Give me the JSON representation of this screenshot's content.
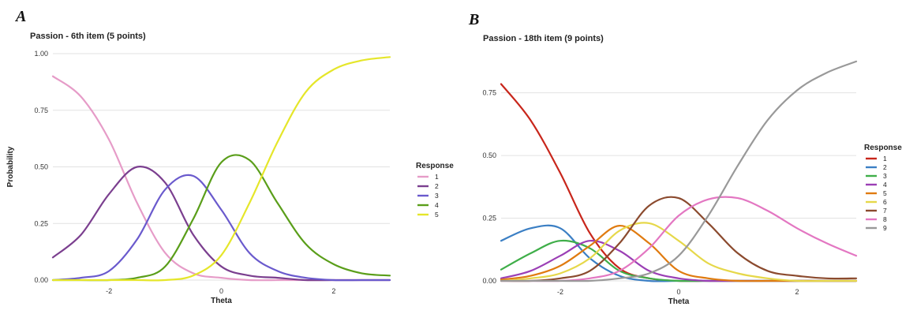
{
  "chart_data": [
    {
      "type": "line",
      "panel": "A",
      "title": "Passion - 6th item (5 points)",
      "xlabel": "Theta",
      "ylabel": "Probability",
      "xlim": [
        -3,
        3
      ],
      "ylim": [
        0,
        1.0
      ],
      "x_ticks": [
        -2,
        0,
        2
      ],
      "x_tick_labels": [
        "-2",
        "0",
        "2"
      ],
      "y_ticks": [
        0,
        0.25,
        0.5,
        0.75,
        1.0
      ],
      "y_tick_labels": [
        "0.00",
        "0.25",
        "0.50",
        "0.75",
        "1.00"
      ],
      "grid": true,
      "legend": {
        "title": "Response",
        "placement": "right"
      },
      "x": [
        -3.0,
        -2.5,
        -2.0,
        -1.5,
        -1.0,
        -0.5,
        0.0,
        0.5,
        1.0,
        1.5,
        2.0,
        2.5,
        3.0
      ],
      "series": [
        {
          "name": "1",
          "color": "#e69cc8",
          "values": [
            0.9,
            0.81,
            0.62,
            0.34,
            0.12,
            0.03,
            0.01,
            0.0,
            0.0,
            0.0,
            0.0,
            0.0,
            0.0
          ]
        },
        {
          "name": "2",
          "color": "#7b3f8f",
          "values": [
            0.1,
            0.2,
            0.38,
            0.5,
            0.43,
            0.2,
            0.06,
            0.02,
            0.01,
            0.0,
            0.0,
            0.0,
            0.0
          ]
        },
        {
          "name": "3",
          "color": "#6a5acd",
          "values": [
            0.0,
            0.01,
            0.04,
            0.18,
            0.4,
            0.46,
            0.31,
            0.12,
            0.04,
            0.01,
            0.0,
            0.0,
            0.0
          ]
        },
        {
          "name": "4",
          "color": "#5a9e1a",
          "values": [
            0.0,
            0.0,
            0.0,
            0.01,
            0.06,
            0.27,
            0.52,
            0.53,
            0.34,
            0.16,
            0.07,
            0.03,
            0.02
          ]
        },
        {
          "name": "5",
          "color": "#e5e62a",
          "values": [
            0.0,
            0.0,
            0.0,
            0.0,
            0.0,
            0.02,
            0.11,
            0.34,
            0.61,
            0.83,
            0.93,
            0.97,
            0.985
          ]
        }
      ]
    },
    {
      "type": "line",
      "panel": "B",
      "title": "Passion - 18th item (9 points)",
      "xlabel": "Theta",
      "ylabel": "",
      "xlim": [
        -3,
        3
      ],
      "ylim": [
        0,
        0.9
      ],
      "x_ticks": [
        -2,
        0,
        2
      ],
      "x_tick_labels": [
        "-2",
        "0",
        "2"
      ],
      "y_ticks": [
        0,
        0.25,
        0.5,
        0.75
      ],
      "y_tick_labels": [
        "0.00",
        "0.25",
        "0.50",
        "0.75"
      ],
      "grid": true,
      "legend": {
        "title": "Response",
        "placement": "right"
      },
      "x": [
        -3.0,
        -2.5,
        -2.0,
        -1.5,
        -1.0,
        -0.5,
        0.0,
        0.5,
        1.0,
        1.5,
        2.0,
        2.5,
        3.0
      ],
      "series": [
        {
          "name": "1",
          "color": "#c8261b",
          "values": [
            0.785,
            0.64,
            0.43,
            0.19,
            0.05,
            0.01,
            0.0,
            0.0,
            0.0,
            0.0,
            0.0,
            0.0,
            0.0
          ]
        },
        {
          "name": "2",
          "color": "#3b7fc4",
          "values": [
            0.16,
            0.21,
            0.21,
            0.09,
            0.02,
            0.0,
            0.0,
            0.0,
            0.0,
            0.0,
            0.0,
            0.0,
            0.0
          ]
        },
        {
          "name": "3",
          "color": "#3fae49",
          "values": [
            0.045,
            0.11,
            0.16,
            0.13,
            0.04,
            0.01,
            0.0,
            0.0,
            0.0,
            0.0,
            0.0,
            0.0,
            0.0
          ]
        },
        {
          "name": "4",
          "color": "#9b3fb5",
          "values": [
            0.01,
            0.04,
            0.1,
            0.16,
            0.12,
            0.04,
            0.01,
            0.0,
            0.0,
            0.0,
            0.0,
            0.0,
            0.0
          ]
        },
        {
          "name": "5",
          "color": "#e07b10",
          "values": [
            0.005,
            0.02,
            0.06,
            0.14,
            0.22,
            0.15,
            0.04,
            0.01,
            0.0,
            0.0,
            0.0,
            0.0,
            0.0
          ]
        },
        {
          "name": "6",
          "color": "#e6d84a",
          "values": [
            0.0,
            0.01,
            0.03,
            0.09,
            0.2,
            0.23,
            0.16,
            0.07,
            0.03,
            0.01,
            0.0,
            0.0,
            0.0
          ]
        },
        {
          "name": "7",
          "color": "#8b4a2e",
          "values": [
            0.0,
            0.0,
            0.01,
            0.04,
            0.15,
            0.3,
            0.33,
            0.23,
            0.11,
            0.04,
            0.02,
            0.01,
            0.01
          ]
        },
        {
          "name": "8",
          "color": "#e377c2",
          "values": [
            0.0,
            0.0,
            0.0,
            0.01,
            0.04,
            0.13,
            0.26,
            0.325,
            0.33,
            0.28,
            0.21,
            0.15,
            0.1
          ]
        },
        {
          "name": "9",
          "color": "#999999",
          "values": [
            0.0,
            0.0,
            0.0,
            0.0,
            0.01,
            0.03,
            0.1,
            0.26,
            0.46,
            0.64,
            0.76,
            0.83,
            0.875
          ]
        }
      ]
    }
  ]
}
